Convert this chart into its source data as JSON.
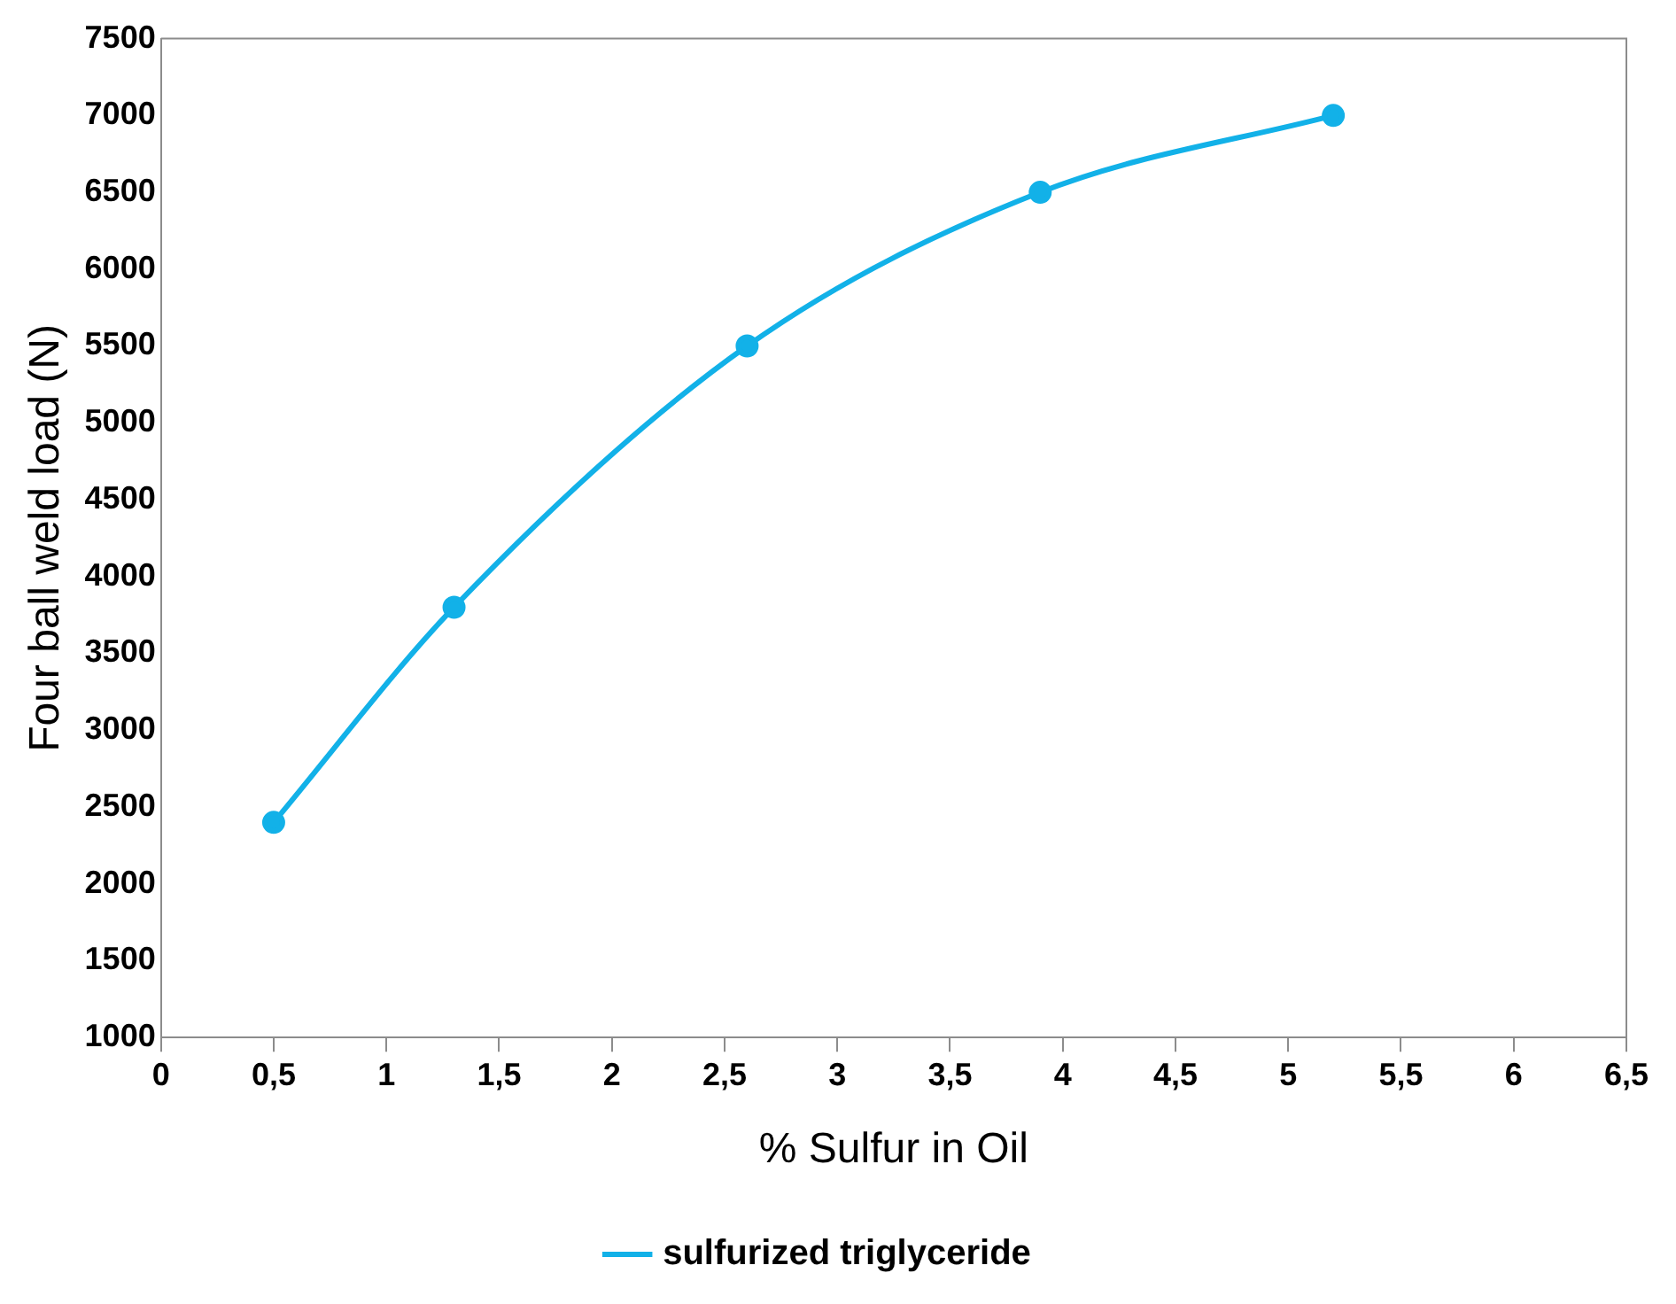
{
  "chart_data": {
    "type": "line",
    "xlabel": "% Sulfur in Oil",
    "ylabel": "Four ball weld load (N)",
    "series": [
      {
        "name": "sulfurized triglyceride",
        "color": "#12b1e8",
        "x": [
          0.5,
          1.3,
          2.6,
          3.9,
          5.2
        ],
        "values": [
          2400,
          3800,
          5500,
          6500,
          7000
        ]
      }
    ],
    "xlim": [
      0,
      6.5
    ],
    "xticks": [
      0,
      {
        "value": 0.5,
        "label": "0,5"
      },
      1,
      {
        "value": 1.5,
        "label": "1,5"
      },
      2,
      {
        "value": 2.5,
        "label": "2,5"
      },
      3,
      {
        "value": 3.5,
        "label": "3,5"
      },
      4,
      {
        "value": 4.5,
        "label": "4,5"
      },
      5,
      {
        "value": 5.5,
        "label": "5,5"
      },
      6,
      {
        "value": 6.5,
        "label": "6,5"
      }
    ],
    "ylim": [
      1000,
      7500
    ],
    "yticks": [
      1000,
      1500,
      2000,
      2500,
      3000,
      3500,
      4000,
      4500,
      5000,
      5500,
      6000,
      6500,
      7000,
      7500
    ],
    "grid": false,
    "legend": "bottom",
    "marker": "circle",
    "line_style": "solid"
  }
}
